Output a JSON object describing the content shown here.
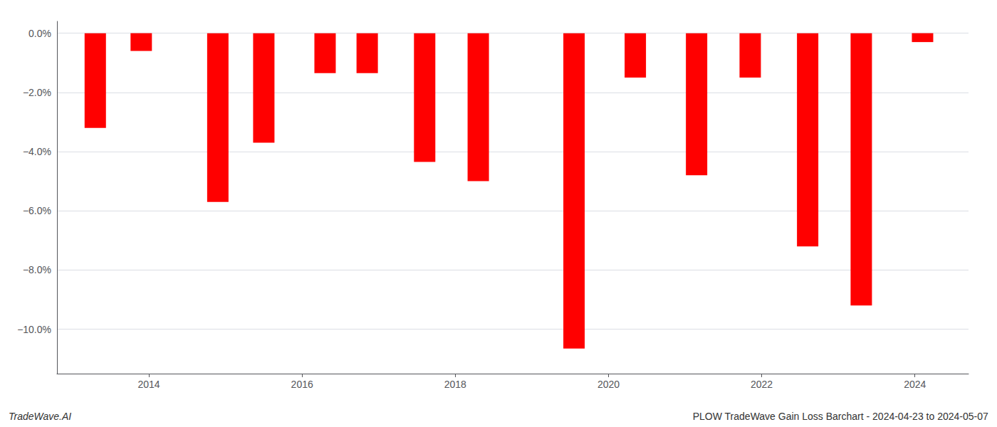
{
  "chart_data": {
    "type": "bar",
    "x": [
      2013.3,
      2013.9,
      2014.9,
      2015.5,
      2016.3,
      2016.85,
      2017.6,
      2018.3,
      2019.55,
      2020.35,
      2021.15,
      2021.85,
      2022.6,
      2023.3,
      2024.1
    ],
    "values": [
      -3.2,
      -0.6,
      -5.7,
      -3.7,
      -1.35,
      -1.35,
      -4.35,
      -5.0,
      -10.65,
      -1.5,
      -4.8,
      -1.5,
      -7.2,
      -9.2,
      -0.3
    ],
    "color": "#ff0000",
    "xlim": [
      2012.8,
      2024.7
    ],
    "xticks": [
      2014,
      2016,
      2018,
      2020,
      2022,
      2024
    ],
    "ylim": [
      -11.5,
      0.4
    ],
    "yticks": [
      {
        "value": 0.0,
        "label": "0.0%"
      },
      {
        "value": -2.0,
        "label": "−2.0%"
      },
      {
        "value": -4.0,
        "label": "−4.0%"
      },
      {
        "value": -6.0,
        "label": "−6.0%"
      },
      {
        "value": -8.0,
        "label": "−8.0%"
      },
      {
        "value": -10.0,
        "label": "−10.0%"
      }
    ],
    "grid": true,
    "annotations": [
      "TradeWave.AI",
      "PLOW TradeWave Gain Loss Barchart - 2024-04-23 to 2024-05-07"
    ]
  }
}
